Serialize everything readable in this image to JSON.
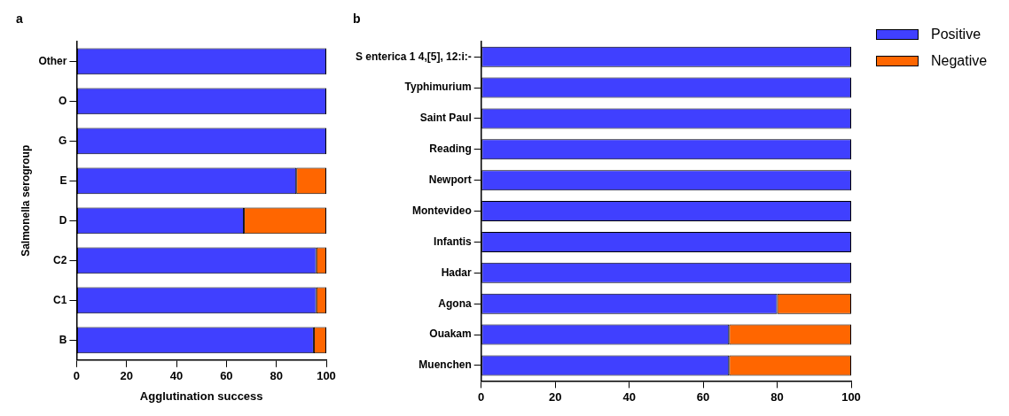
{
  "chart_data": [
    {
      "type": "bar",
      "title": "a",
      "orientation": "horizontal",
      "stacked": true,
      "xlabel": "Agglutination success",
      "ylabel": "Salmonella serogroup",
      "categories": [
        "Other",
        "O",
        "G",
        "E",
        "D",
        "C2",
        "C1",
        "B"
      ],
      "xlim": [
        0,
        100
      ],
      "xticks": [
        0,
        20,
        40,
        60,
        80,
        100
      ],
      "grid": false,
      "legend": false,
      "series": [
        {
          "color": "#4040ff",
          "values": [
            100,
            100,
            100,
            88,
            67,
            96,
            96,
            95
          ]
        },
        {
          "color": "#ff6600",
          "values": [
            0,
            0,
            0,
            12,
            33,
            4,
            4,
            5
          ]
        }
      ]
    },
    {
      "type": "bar",
      "title": "b",
      "orientation": "horizontal",
      "stacked": true,
      "categories": [
        "S enterica 1 4,[5], 12:i:-",
        "Typhimurium",
        "Saint Paul",
        "Reading",
        "Newport",
        "Montevideo",
        "Infantis",
        "Hadar",
        "Agona",
        "Ouakam",
        "Muenchen"
      ],
      "xlim": [
        0,
        100
      ],
      "xticks": [
        0,
        20,
        40,
        60,
        80,
        100
      ],
      "grid": false,
      "legend": "right",
      "series": [
        {
          "name": "Positive",
          "color": "#4040ff",
          "values": [
            100,
            100,
            100,
            100,
            100,
            100,
            100,
            100,
            80,
            67,
            67
          ]
        },
        {
          "name": "Negative",
          "color": "#ff6600",
          "values": [
            0,
            0,
            0,
            0,
            0,
            0,
            0,
            0,
            20,
            33,
            33
          ]
        }
      ]
    }
  ]
}
